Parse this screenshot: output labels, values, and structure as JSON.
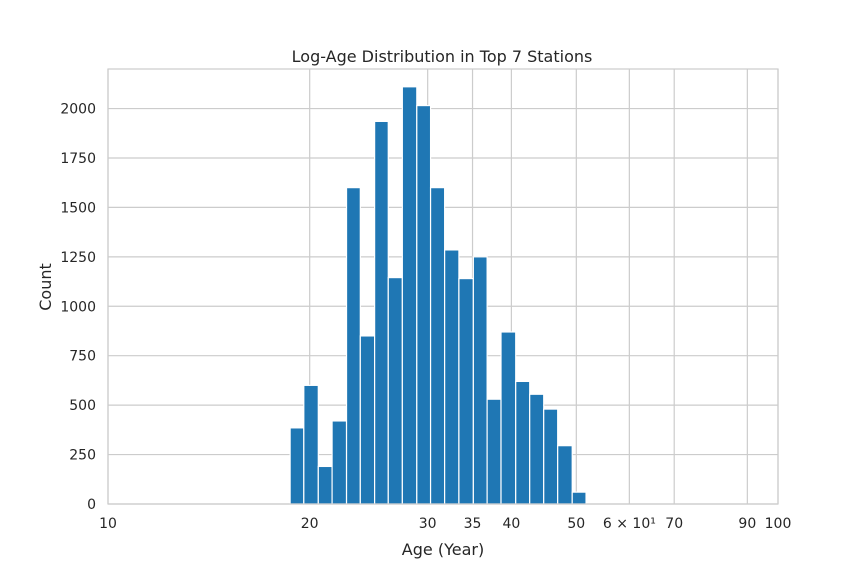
{
  "chart_data": {
    "type": "bar",
    "title": "Log-Age Distribution in Top 7 Stations",
    "xlabel": "Age (Year)",
    "ylabel": "Count",
    "x_scale": "log",
    "xlim": [
      10,
      100
    ],
    "ylim": [
      0,
      2200
    ],
    "grid": true,
    "bar_color": "#1f77b4",
    "grid_color": "#cccccc",
    "x_ticks": [
      {
        "value": 10,
        "label": "10"
      },
      {
        "value": 20,
        "label": "20"
      },
      {
        "value": 30,
        "label": "30"
      },
      {
        "value": 35,
        "label": "35"
      },
      {
        "value": 40,
        "label": "40"
      },
      {
        "value": 50,
        "label": "50"
      },
      {
        "value": 60,
        "label": "6 × 10¹"
      },
      {
        "value": 70,
        "label": "70"
      },
      {
        "value": 90,
        "label": "90"
      },
      {
        "value": 100,
        "label": "100"
      }
    ],
    "y_ticks": [
      0,
      250,
      500,
      750,
      1000,
      1250,
      1500,
      1750,
      2000
    ],
    "bins": [
      {
        "x0": 18.7,
        "x1": 19.6,
        "count": 385
      },
      {
        "x0": 19.6,
        "x1": 20.6,
        "count": 600
      },
      {
        "x0": 20.6,
        "x1": 21.6,
        "count": 190
      },
      {
        "x0": 21.6,
        "x1": 22.7,
        "count": 420
      },
      {
        "x0": 22.7,
        "x1": 23.8,
        "count": 1600
      },
      {
        "x0": 23.8,
        "x1": 25.0,
        "count": 850
      },
      {
        "x0": 25.0,
        "x1": 26.2,
        "count": 1935
      },
      {
        "x0": 26.2,
        "x1": 27.5,
        "count": 1145
      },
      {
        "x0": 27.5,
        "x1": 28.9,
        "count": 2110
      },
      {
        "x0": 28.9,
        "x1": 30.3,
        "count": 2015
      },
      {
        "x0": 30.3,
        "x1": 31.8,
        "count": 1600
      },
      {
        "x0": 31.8,
        "x1": 33.4,
        "count": 1285
      },
      {
        "x0": 33.4,
        "x1": 35.1,
        "count": 1140
      },
      {
        "x0": 35.1,
        "x1": 36.8,
        "count": 1250
      },
      {
        "x0": 36.8,
        "x1": 38.6,
        "count": 530
      },
      {
        "x0": 38.6,
        "x1": 40.6,
        "count": 870
      },
      {
        "x0": 40.6,
        "x1": 42.6,
        "count": 620
      },
      {
        "x0": 42.6,
        "x1": 44.7,
        "count": 555
      },
      {
        "x0": 44.7,
        "x1": 46.9,
        "count": 480
      },
      {
        "x0": 46.9,
        "x1": 49.3,
        "count": 295
      },
      {
        "x0": 49.3,
        "x1": 51.7,
        "count": 60
      }
    ]
  }
}
